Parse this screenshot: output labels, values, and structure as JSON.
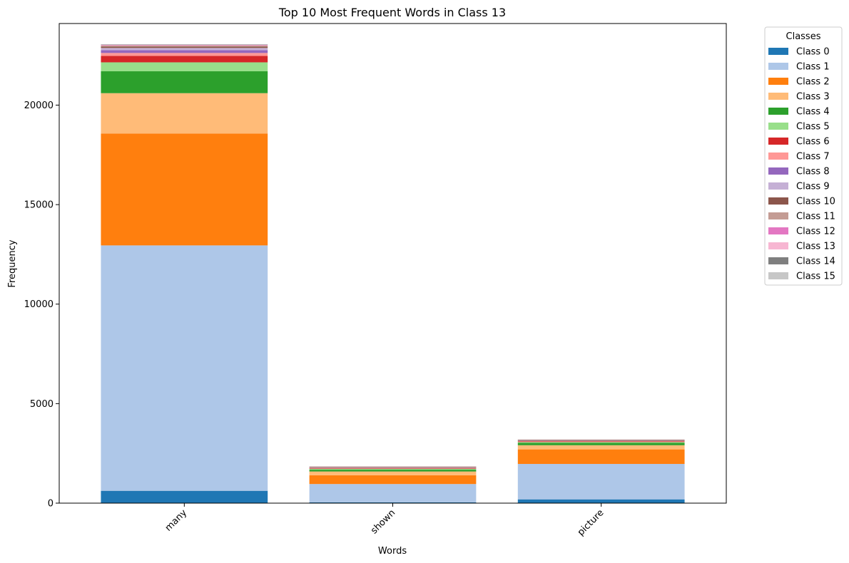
{
  "chart_data": {
    "type": "bar",
    "stacked": true,
    "title": "Top 10 Most Frequent Words in Class 13",
    "xlabel": "Words",
    "ylabel": "Frequency",
    "ylim": [
      0,
      24100
    ],
    "yticks": [
      0,
      5000,
      10000,
      15000,
      20000
    ],
    "ytick_labels": [
      "0",
      "5000",
      "10000",
      "15000",
      "20000"
    ],
    "categories": [
      "many",
      "shown",
      "picture"
    ],
    "legend_title": "Classes",
    "legend_position": "outside-right-top",
    "series": [
      {
        "name": "Class 0",
        "color": "#1f77b4",
        "values": [
          620,
          40,
          190
        ]
      },
      {
        "name": "Class 1",
        "color": "#aec7e8",
        "values": [
          12330,
          920,
          1780
        ]
      },
      {
        "name": "Class 2",
        "color": "#ff7f0e",
        "values": [
          5620,
          440,
          730
        ]
      },
      {
        "name": "Class 3",
        "color": "#ffbb78",
        "values": [
          2030,
          190,
          210
        ]
      },
      {
        "name": "Class 4",
        "color": "#2ca02c",
        "values": [
          1100,
          90,
          120
        ]
      },
      {
        "name": "Class 5",
        "color": "#98df8a",
        "values": [
          450,
          50,
          40
        ]
      },
      {
        "name": "Class 6",
        "color": "#d62728",
        "values": [
          320,
          25,
          30
        ]
      },
      {
        "name": "Class 7",
        "color": "#ff9896",
        "values": [
          150,
          15,
          15
        ]
      },
      {
        "name": "Class 8",
        "color": "#9467bd",
        "values": [
          140,
          12,
          10
        ]
      },
      {
        "name": "Class 9",
        "color": "#c5b0d5",
        "values": [
          110,
          12,
          10
        ]
      },
      {
        "name": "Class 10",
        "color": "#8c564b",
        "values": [
          70,
          30,
          40
        ]
      },
      {
        "name": "Class 11",
        "color": "#c49c94",
        "values": [
          50,
          10,
          10
        ]
      },
      {
        "name": "Class 12",
        "color": "#e377c2",
        "values": [
          20,
          3,
          3
        ]
      },
      {
        "name": "Class 13",
        "color": "#f7b6d2",
        "values": [
          20,
          3,
          3
        ]
      },
      {
        "name": "Class 14",
        "color": "#7f7f7f",
        "values": [
          15,
          3,
          3
        ]
      },
      {
        "name": "Class 15",
        "color": "#c7c7c7",
        "values": [
          15,
          3,
          3
        ]
      }
    ]
  }
}
